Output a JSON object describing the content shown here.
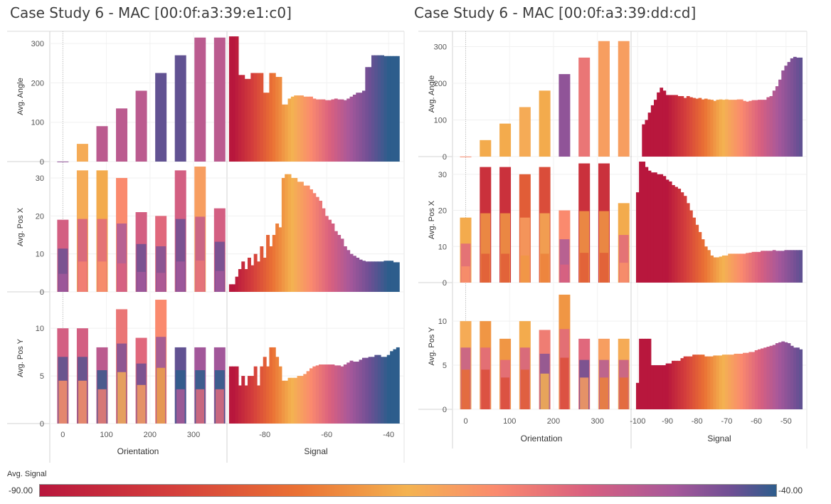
{
  "panels": [
    {
      "title": "Case Study 6 - MAC [00:0f:a3:39:e1:c0]"
    },
    {
      "title": "Case Study 6 - MAC [00:0f:a3:39:dd:cd]"
    }
  ],
  "legend": {
    "title": "Avg. Signal",
    "min": "-90.00",
    "max": "-40.00"
  },
  "colors": {
    "signal_scale": [
      "#b8173d",
      "#d43f3c",
      "#ea7134",
      "#f4b350",
      "#fa8a6e",
      "#d9607f",
      "#a7589a",
      "#6e4f94",
      "#2d5d8c"
    ],
    "grid": "#eeeeee",
    "axis": "#d3d3d3"
  },
  "chart_data": [
    {
      "type": "bar",
      "mac": "00:0f:a3:39:e1:c0",
      "xlabel_left": "Orientation",
      "xlabel_right": "Signal",
      "rows": [
        {
          "ylabel": "Avg. Angle",
          "ylim": [
            0,
            320
          ],
          "yticks": [
            0,
            100,
            200,
            300
          ]
        },
        {
          "ylabel": "Avg. Pos X",
          "ylim": [
            0,
            33
          ],
          "yticks": [
            0,
            10,
            20,
            30
          ]
        },
        {
          "ylabel": "Avg. Pos Y",
          "ylim": [
            0,
            13.3
          ],
          "yticks": [
            0,
            5,
            10
          ]
        }
      ],
      "orientation": {
        "xlim": [
          -30,
          375
        ],
        "xticks": [
          0,
          100,
          200,
          300
        ],
        "categories": [
          0,
          45,
          90,
          135,
          180,
          225,
          270,
          315,
          360
        ],
        "avg_angle": [
          0,
          45,
          90,
          135,
          180,
          225,
          270,
          315,
          315
        ],
        "angle_signal": [
          -50,
          -70,
          -55,
          -55,
          -55,
          -45,
          -45,
          -55,
          -55
        ],
        "pos_x": [
          [
            19,
            -58
          ],
          [
            32,
            -70
          ],
          [
            32,
            -72
          ],
          [
            30,
            -65
          ],
          [
            21,
            -58
          ],
          [
            20,
            -60
          ],
          [
            32,
            -58
          ],
          [
            33,
            -68
          ],
          [
            22,
            -58
          ]
        ],
        "pos_y": [
          [
            10,
            -58
          ],
          [
            10,
            -58
          ],
          [
            8,
            -55
          ],
          [
            12,
            -62
          ],
          [
            9,
            -60
          ],
          [
            13,
            -65
          ],
          [
            8,
            -45
          ],
          [
            8,
            -52
          ],
          [
            8,
            -52
          ]
        ]
      },
      "signal": {
        "xlim": [
          -92,
          -35
        ],
        "xticks": [
          -80,
          -60,
          -40
        ],
        "x": [
          -91,
          -90,
          -89,
          -88,
          -87,
          -86,
          -85,
          -84,
          -83,
          -82,
          -81,
          -80,
          -79,
          -78,
          -77,
          -76,
          -75,
          -74,
          -73,
          -72,
          -71,
          -70,
          -69,
          -68,
          -67,
          -66,
          -65,
          -64,
          -63,
          -62,
          -61,
          -60,
          -59,
          -58,
          -57,
          -56,
          -55,
          -54,
          -53,
          -52,
          -51,
          -50,
          -49,
          -48,
          -47,
          -46,
          -45,
          -44,
          -43,
          -42,
          -41,
          -40,
          -39,
          -38,
          -37
        ],
        "avg_angle": [
          318,
          318,
          318,
          220,
          220,
          210,
          210,
          225,
          225,
          225,
          225,
          175,
          175,
          225,
          225,
          215,
          215,
          145,
          145,
          160,
          165,
          168,
          168,
          168,
          165,
          165,
          165,
          160,
          158,
          158,
          158,
          156,
          156,
          158,
          160,
          158,
          158,
          156,
          160,
          165,
          170,
          175,
          175,
          180,
          240,
          240,
          270,
          270,
          270,
          270,
          268,
          268,
          268,
          268,
          268
        ],
        "avg_pos_x": [
          2,
          2,
          4,
          6,
          8,
          6,
          9,
          7,
          10,
          8,
          12,
          9,
          15,
          12,
          15,
          18,
          17,
          30,
          31,
          31,
          30,
          30,
          29,
          29,
          28,
          28,
          27,
          26,
          25,
          24,
          22,
          20,
          19,
          18,
          16,
          15,
          14,
          12,
          11,
          10,
          9.5,
          9,
          8.5,
          8.2,
          8,
          8,
          8,
          8,
          8,
          8,
          8.2,
          8.2,
          8.2,
          7.8,
          7.8
        ],
        "avg_pos_y": [
          6,
          6,
          6,
          4,
          5,
          4,
          5,
          5,
          6,
          4,
          6,
          7,
          6,
          8,
          8,
          7,
          6,
          4.5,
          4.5,
          4.8,
          4.8,
          4.8,
          5,
          5,
          5.2,
          5.5,
          5.8,
          6,
          6.1,
          6.2,
          6.2,
          6.2,
          6.2,
          6.2,
          6.1,
          6.1,
          6,
          6.2,
          6.4,
          6.6,
          6.5,
          6.5,
          6.7,
          6.9,
          6.9,
          7,
          7,
          7.2,
          7.2,
          7,
          7,
          7.2,
          7.6,
          7.8,
          8
        ]
      }
    },
    {
      "type": "bar",
      "mac": "00:0f:a3:39:dd:cd",
      "xlabel_left": "Orientation",
      "xlabel_right": "Signal",
      "rows": [
        {
          "ylabel": "Avg. Angle",
          "ylim": [
            0,
            330
          ],
          "yticks": [
            0,
            100,
            200,
            300
          ]
        },
        {
          "ylabel": "Avg. Pos X",
          "ylim": [
            0,
            33.5
          ],
          "yticks": [
            0,
            10,
            20,
            30
          ]
        },
        {
          "ylabel": "Avg. Pos Y",
          "ylim": [
            0,
            13.8
          ],
          "yticks": [
            0,
            5,
            10
          ]
        }
      ],
      "orientation": {
        "xlim": [
          -30,
          375
        ],
        "xticks": [
          0,
          100,
          200,
          300
        ],
        "categories": [
          0,
          45,
          90,
          135,
          180,
          225,
          270,
          315,
          360
        ],
        "avg_angle": [
          0,
          45,
          90,
          135,
          180,
          225,
          270,
          315,
          315
        ],
        "angle_signal": [
          -65,
          -72,
          -72,
          -70,
          -72,
          -50,
          -62,
          -68,
          -68
        ],
        "pos_x": [
          [
            18,
            -72
          ],
          [
            32,
            -86
          ],
          [
            32,
            -86
          ],
          [
            30,
            -80
          ],
          [
            32,
            -82
          ],
          [
            20,
            -65
          ],
          [
            33,
            -86
          ],
          [
            33,
            -86
          ],
          [
            22,
            -72
          ]
        ],
        "pos_y": [
          [
            10,
            -70
          ],
          [
            10,
            -74
          ],
          [
            8,
            -74
          ],
          [
            10,
            -72
          ],
          [
            9,
            -63
          ],
          [
            13,
            -74
          ],
          [
            8,
            -60
          ],
          [
            8,
            -68
          ],
          [
            8,
            -70
          ]
        ]
      },
      "signal": {
        "xlim": [
          -102,
          -43
        ],
        "xticks": [
          -100,
          -90,
          -80,
          -70,
          -60,
          -50
        ],
        "x": [
          -100,
          -99,
          -98,
          -97,
          -96,
          -95,
          -94,
          -93,
          -92,
          -91,
          -90,
          -89,
          -88,
          -87,
          -86,
          -85,
          -84,
          -83,
          -82,
          -81,
          -80,
          -79,
          -78,
          -77,
          -76,
          -75,
          -74,
          -73,
          -72,
          -71,
          -70,
          -69,
          -68,
          -67,
          -66,
          -65,
          -64,
          -63,
          -62,
          -61,
          -60,
          -59,
          -58,
          -57,
          -56,
          -55,
          -54,
          -53,
          -52,
          -51,
          -50,
          -49,
          -48,
          -47,
          -46,
          -45
        ],
        "avg_angle": [
          0,
          0,
          88,
          100,
          120,
          140,
          155,
          175,
          188,
          180,
          168,
          168,
          168,
          168,
          165,
          165,
          160,
          165,
          162,
          160,
          158,
          160,
          156,
          158,
          156,
          155,
          152,
          155,
          156,
          155,
          156,
          155,
          155,
          155,
          156,
          156,
          152,
          150,
          152,
          154,
          154,
          155,
          155,
          155,
          162,
          165,
          180,
          192,
          210,
          235,
          248,
          258,
          268,
          272,
          270,
          270
        ],
        "avg_pos_x": [
          25,
          33.5,
          33.5,
          32,
          31,
          30.5,
          30.5,
          30,
          30,
          29.5,
          28.5,
          28,
          27,
          26.5,
          26,
          25,
          24,
          22,
          20,
          18,
          16,
          14,
          12,
          10,
          9,
          7.5,
          7,
          7,
          7.2,
          7.5,
          7.5,
          8,
          8,
          8,
          8,
          8,
          8,
          8.2,
          8.3,
          8.5,
          8.5,
          8.5,
          8.8,
          8.8,
          8.8,
          8.8,
          9,
          8.8,
          8.8,
          8.8,
          9,
          9,
          9,
          9,
          9,
          9
        ],
        "avg_pos_y": [
          3,
          8,
          8,
          8,
          8,
          5,
          5,
          5,
          5,
          5,
          5.2,
          5.2,
          5.5,
          5.5,
          5.5,
          5.8,
          6,
          6,
          6,
          6.2,
          6.2,
          6.2,
          6.2,
          6,
          6,
          6,
          6.1,
          6.1,
          6.1,
          6.2,
          6.2,
          6.2,
          6.2,
          6.3,
          6.3,
          6.3,
          6.4,
          6.4,
          6.5,
          6.5,
          6.7,
          6.8,
          6.9,
          7,
          7.1,
          7.2,
          7.3,
          7.5,
          7.6,
          7.7,
          7.6,
          7.5,
          7.2,
          7,
          7,
          6.8
        ]
      }
    }
  ]
}
